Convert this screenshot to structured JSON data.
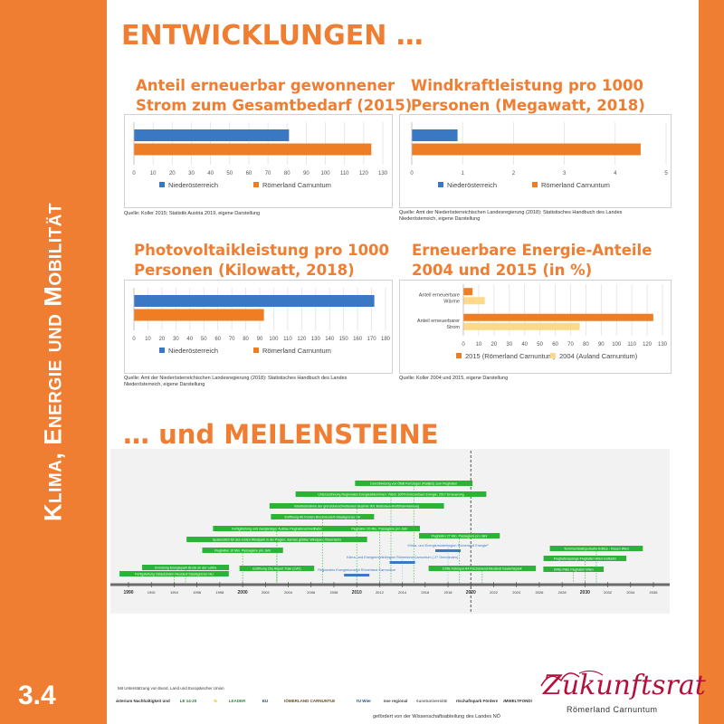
{
  "sidebar": {
    "title": "Klima, Energie und Mobilität",
    "section_number": "3.4"
  },
  "headings": {
    "main": "ENTWICKLUNGEN …",
    "milestones": "… und MEILENSTEINE"
  },
  "colors": {
    "accent": "#ef7d32",
    "blue": "#3a78c3",
    "orange": "#ef7d23",
    "light_blue": "#9fc3e7",
    "yellow": "#fdd98a",
    "green": "#2bb338"
  },
  "charts": {
    "renewable_share": {
      "title_line1": "Anteil erneuerbar gewonnener",
      "title_line2": "Strom zum Gesamtbedarf (2015)",
      "source": "Quelle: Koller 2015; Statistik Austria 2019, eigene Darstellung"
    },
    "wind_power": {
      "title_line1": "Windkraftleistung pro 1000",
      "title_line2": "Personen (Megawatt, 2018)",
      "source_line1": "Quelle: Amt der Niederösterreichischen Landesregierung (2018): Statistisches Handbuch des Landes",
      "source_line2": "Niederösterreich, eigene Darstellung"
    },
    "photovoltaic": {
      "title_line1": "Photovoltaikleistung pro 1000",
      "title_line2": "Personen (Kilowatt, 2018)",
      "source_line1": "Quelle: Amt der Niederösterreichischen Landesregierung (2018): Statistisches Handbuch des Landes",
      "source_line2": "Niederösterreich, eigene Darstellung"
    },
    "energy_shares": {
      "title_line1": "Erneuerbare Energie-Anteile",
      "title_line2": "2004 und 2015 (in %)",
      "source": "Quelle: Koller 2004 und 2015, eigene Darstellung"
    }
  },
  "chart_data": [
    {
      "type": "bar",
      "orientation": "horizontal",
      "categories": [
        ""
      ],
      "series": [
        {
          "name": "Niederösterreich",
          "values": [
            81
          ]
        },
        {
          "name": "Römerland Carnuntum",
          "values": [
            124
          ]
        }
      ],
      "ticks": [
        0,
        10,
        20,
        30,
        40,
        50,
        60,
        70,
        80,
        90,
        100,
        110,
        120,
        130
      ],
      "xlim": [
        0,
        130
      ],
      "legend": "bottom",
      "grid": true
    },
    {
      "type": "bar",
      "orientation": "horizontal",
      "categories": [
        ""
      ],
      "series": [
        {
          "name": "Niederösterreich",
          "values": [
            0.9
          ]
        },
        {
          "name": "Römerland Carnuntum",
          "values": [
            4.5
          ]
        }
      ],
      "ticks": [
        0,
        1,
        2,
        3,
        4,
        5
      ],
      "xlim": [
        0,
        5
      ],
      "legend": "bottom",
      "grid": true
    },
    {
      "type": "bar",
      "orientation": "horizontal",
      "categories": [
        ""
      ],
      "series": [
        {
          "name": "Niederösterreich",
          "values": [
            172
          ]
        },
        {
          "name": "Römerland Carnuntum",
          "values": [
            93
          ]
        }
      ],
      "ticks": [
        0,
        10,
        20,
        30,
        40,
        50,
        60,
        70,
        80,
        90,
        100,
        110,
        120,
        130,
        140,
        150,
        160,
        170,
        180
      ],
      "xlim": [
        0,
        180
      ],
      "legend": "bottom",
      "grid": true
    },
    {
      "type": "bar",
      "orientation": "horizontal",
      "categories": [
        "Anteil erneuerbare Wärme",
        "Anteil erneuerbarer Strom"
      ],
      "series": [
        {
          "name": "2015 (Römerland Carnuntum)",
          "values": [
            6,
            124
          ]
        },
        {
          "name": "2004 (Auland Carnuntum)",
          "values": [
            14,
            76
          ]
        }
      ],
      "ticks": [
        0,
        10,
        20,
        30,
        40,
        50,
        60,
        70,
        80,
        90,
        100,
        110,
        120,
        130
      ],
      "xlim": [
        0,
        130
      ],
      "legend": "bottom",
      "grid": true
    }
  ],
  "timeline": {
    "tick_labels": [
      "1990",
      "1992",
      "1994",
      "1996",
      "1998",
      "2000",
      "2002",
      "2004",
      "2006",
      "2008",
      "2010",
      "2012",
      "2014",
      "2016",
      "2018",
      "2020",
      "2022",
      "2024",
      "2026",
      "2028",
      "2030",
      "2032",
      "2034",
      "2036"
    ],
    "range": [
      1990,
      2036
    ],
    "today": 2020,
    "events": [
      {
        "label": "Fertigstellung Ostautobahn Neusiedl Staatsgrenze HU",
        "year": 1994
      },
      {
        "label": "Gründung Energiepark Bruck an der Leitha",
        "year": 1995
      },
      {
        "label": "Flughafen 10 Mio. Passagiere pro Jahr",
        "year": 2000
      },
      {
        "label": "Spatenstich für den ersten Windpark in der Region, damals größter Windpark Österreichs",
        "year": 2003
      },
      {
        "label": "Fertigstellung und zweigleisiger Ausbau Flughafenschnellbahn",
        "year": 2003
      },
      {
        "label": "Eröffnung A6 Knoten Bruckneudorf-Staatsgrenze SK",
        "year": 2007
      },
      {
        "label": "Inbetriebnahme der grenzüberschreitenden Buslinie 901 Bratislava-Wolfsthal-Hainburg",
        "year": 2010
      },
      {
        "label": "Unterzeichnung Regionales Energieabkommen: Vision 100% Erneuerbare Energie; 2017 Erneuerung",
        "year": 2013
      },
      {
        "label": "Durchbindung von ÖBB Fernzügen (Railjets) zum Flughafen",
        "year": 2015
      },
      {
        "label": "Flughafen 20 Mio. Passagiere pro Jahr",
        "year": 2012
      },
      {
        "label": "Eröffnung City Airport Train (CAT)",
        "year": 2003
      },
      {
        "label": "Regionales Energiekonzept Römerland Carnuntum",
        "year": 2010
      },
      {
        "label": "Klima- und Energiemodellregion Römerland Carnuntum ( 27 Gemeinden)",
        "year": 2014
      },
      {
        "label": "Flughafen 27 Mio. Passagiere pro Jahr",
        "year": 2019
      },
      {
        "label": "Klima- und Energiemodellregion Römerland Energie²",
        "year": 2018
      },
      {
        "label": "Dritte Fahrspur A4 Fischamend-Neusiedl Gewerbepark",
        "year": 2021
      },
      {
        "label": "Terminal Bratispurbahn Kottice - Rauen Wien",
        "year": 2031
      },
      {
        "label": "Flughafenspange Flughafen Wien-Gotbahn",
        "year": 2030
      },
      {
        "label": "Dritte Piste Flughafen Wien",
        "year": 2029
      }
    ]
  },
  "footer": {
    "support": "Mit Unterstützung von Bund, Land und Europäischer Union",
    "funding": "gefördert von der Wissenschaftsabteilung des Landes NÖ",
    "logos": [
      "Bundesministerium Nachhaltigkeit und Tourismus",
      "LE 14-20",
      "N",
      "LEADER",
      "EU",
      "RÖMERLAND CARNUNTUM",
      "TU Wien",
      "noe regional",
      "Kunstuniversität",
      "Wirtschaftspark Fördernde",
      "UMWELTFONDS"
    ],
    "brand_name": "Zukunftsrat",
    "brand_sub": "Römerland Carnuntum"
  }
}
